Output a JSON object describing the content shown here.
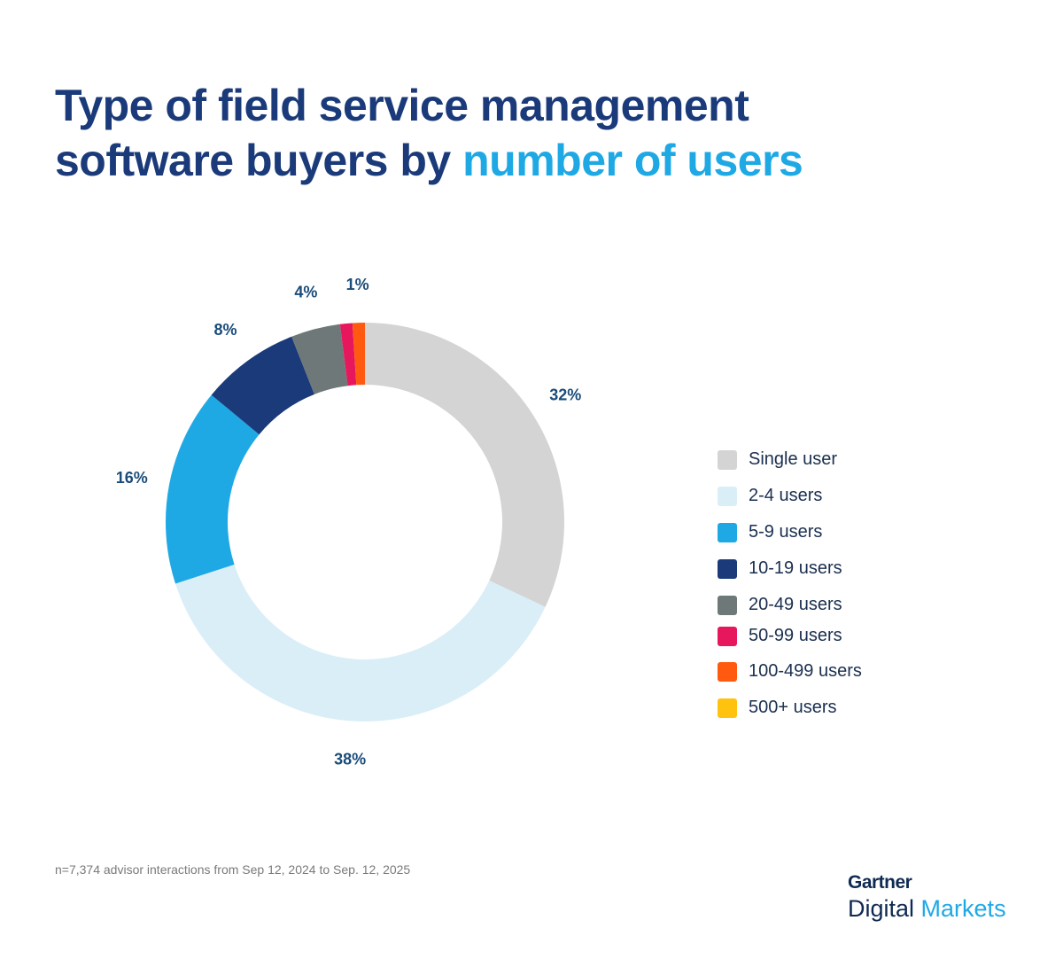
{
  "title": {
    "part1": "Type of field service management",
    "part2": "software buyers by ",
    "highlight": "number of users"
  },
  "chart_data": {
    "type": "pie",
    "variant": "donut",
    "categories": [
      "Single user",
      "2-4 users",
      "5-9 users",
      "10-19 users",
      "20-49 users",
      "50-99 users",
      "100-499 users",
      "500+ users"
    ],
    "values": [
      32,
      38,
      16,
      8,
      4,
      1,
      1,
      0
    ],
    "data_labels": [
      "32%",
      "38%",
      "16%",
      "8%",
      "4%",
      "",
      "1%",
      ""
    ],
    "colors": [
      "#d4d4d4",
      "#daeef7",
      "#1ea9e5",
      "#1a3a7a",
      "#6f7878",
      "#e6175c",
      "#ff5a0f",
      "#ffc20e"
    ],
    "legend_position": "right",
    "start": "top, clockwise"
  },
  "footnote": "n=7,374 advisor interactions from Sep 12, 2024 to Sep. 12, 2025",
  "logo": {
    "brand": "Gartner",
    "line1": "Digital",
    "line2": "Markets"
  }
}
